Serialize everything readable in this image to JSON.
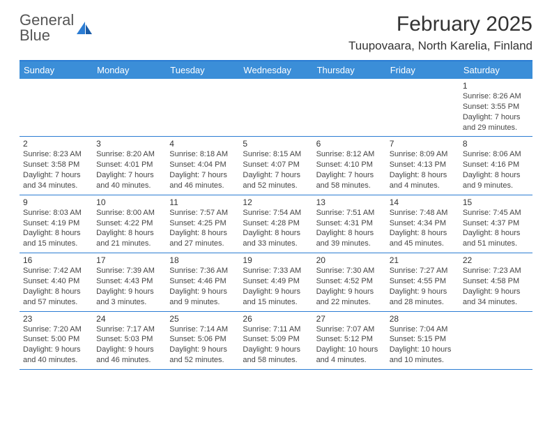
{
  "logo": {
    "text1": "General",
    "text2": "Blue"
  },
  "title": "February 2025",
  "location": "Tuupovaara, North Karelia, Finland",
  "colors": {
    "accent": "#3b8ed8",
    "border": "#2b7cd3",
    "logo_blue": "#2b7cd3",
    "text": "#333333",
    "bg": "#ffffff"
  },
  "day_headers": [
    "Sunday",
    "Monday",
    "Tuesday",
    "Wednesday",
    "Thursday",
    "Friday",
    "Saturday"
  ],
  "weeks": [
    [
      null,
      null,
      null,
      null,
      null,
      null,
      {
        "n": "1",
        "sr": "Sunrise: 8:26 AM",
        "ss": "Sunset: 3:55 PM",
        "d1": "Daylight: 7 hours",
        "d2": "and 29 minutes."
      }
    ],
    [
      {
        "n": "2",
        "sr": "Sunrise: 8:23 AM",
        "ss": "Sunset: 3:58 PM",
        "d1": "Daylight: 7 hours",
        "d2": "and 34 minutes."
      },
      {
        "n": "3",
        "sr": "Sunrise: 8:20 AM",
        "ss": "Sunset: 4:01 PM",
        "d1": "Daylight: 7 hours",
        "d2": "and 40 minutes."
      },
      {
        "n": "4",
        "sr": "Sunrise: 8:18 AM",
        "ss": "Sunset: 4:04 PM",
        "d1": "Daylight: 7 hours",
        "d2": "and 46 minutes."
      },
      {
        "n": "5",
        "sr": "Sunrise: 8:15 AM",
        "ss": "Sunset: 4:07 PM",
        "d1": "Daylight: 7 hours",
        "d2": "and 52 minutes."
      },
      {
        "n": "6",
        "sr": "Sunrise: 8:12 AM",
        "ss": "Sunset: 4:10 PM",
        "d1": "Daylight: 7 hours",
        "d2": "and 58 minutes."
      },
      {
        "n": "7",
        "sr": "Sunrise: 8:09 AM",
        "ss": "Sunset: 4:13 PM",
        "d1": "Daylight: 8 hours",
        "d2": "and 4 minutes."
      },
      {
        "n": "8",
        "sr": "Sunrise: 8:06 AM",
        "ss": "Sunset: 4:16 PM",
        "d1": "Daylight: 8 hours",
        "d2": "and 9 minutes."
      }
    ],
    [
      {
        "n": "9",
        "sr": "Sunrise: 8:03 AM",
        "ss": "Sunset: 4:19 PM",
        "d1": "Daylight: 8 hours",
        "d2": "and 15 minutes."
      },
      {
        "n": "10",
        "sr": "Sunrise: 8:00 AM",
        "ss": "Sunset: 4:22 PM",
        "d1": "Daylight: 8 hours",
        "d2": "and 21 minutes."
      },
      {
        "n": "11",
        "sr": "Sunrise: 7:57 AM",
        "ss": "Sunset: 4:25 PM",
        "d1": "Daylight: 8 hours",
        "d2": "and 27 minutes."
      },
      {
        "n": "12",
        "sr": "Sunrise: 7:54 AM",
        "ss": "Sunset: 4:28 PM",
        "d1": "Daylight: 8 hours",
        "d2": "and 33 minutes."
      },
      {
        "n": "13",
        "sr": "Sunrise: 7:51 AM",
        "ss": "Sunset: 4:31 PM",
        "d1": "Daylight: 8 hours",
        "d2": "and 39 minutes."
      },
      {
        "n": "14",
        "sr": "Sunrise: 7:48 AM",
        "ss": "Sunset: 4:34 PM",
        "d1": "Daylight: 8 hours",
        "d2": "and 45 minutes."
      },
      {
        "n": "15",
        "sr": "Sunrise: 7:45 AM",
        "ss": "Sunset: 4:37 PM",
        "d1": "Daylight: 8 hours",
        "d2": "and 51 minutes."
      }
    ],
    [
      {
        "n": "16",
        "sr": "Sunrise: 7:42 AM",
        "ss": "Sunset: 4:40 PM",
        "d1": "Daylight: 8 hours",
        "d2": "and 57 minutes."
      },
      {
        "n": "17",
        "sr": "Sunrise: 7:39 AM",
        "ss": "Sunset: 4:43 PM",
        "d1": "Daylight: 9 hours",
        "d2": "and 3 minutes."
      },
      {
        "n": "18",
        "sr": "Sunrise: 7:36 AM",
        "ss": "Sunset: 4:46 PM",
        "d1": "Daylight: 9 hours",
        "d2": "and 9 minutes."
      },
      {
        "n": "19",
        "sr": "Sunrise: 7:33 AM",
        "ss": "Sunset: 4:49 PM",
        "d1": "Daylight: 9 hours",
        "d2": "and 15 minutes."
      },
      {
        "n": "20",
        "sr": "Sunrise: 7:30 AM",
        "ss": "Sunset: 4:52 PM",
        "d1": "Daylight: 9 hours",
        "d2": "and 22 minutes."
      },
      {
        "n": "21",
        "sr": "Sunrise: 7:27 AM",
        "ss": "Sunset: 4:55 PM",
        "d1": "Daylight: 9 hours",
        "d2": "and 28 minutes."
      },
      {
        "n": "22",
        "sr": "Sunrise: 7:23 AM",
        "ss": "Sunset: 4:58 PM",
        "d1": "Daylight: 9 hours",
        "d2": "and 34 minutes."
      }
    ],
    [
      {
        "n": "23",
        "sr": "Sunrise: 7:20 AM",
        "ss": "Sunset: 5:00 PM",
        "d1": "Daylight: 9 hours",
        "d2": "and 40 minutes."
      },
      {
        "n": "24",
        "sr": "Sunrise: 7:17 AM",
        "ss": "Sunset: 5:03 PM",
        "d1": "Daylight: 9 hours",
        "d2": "and 46 minutes."
      },
      {
        "n": "25",
        "sr": "Sunrise: 7:14 AM",
        "ss": "Sunset: 5:06 PM",
        "d1": "Daylight: 9 hours",
        "d2": "and 52 minutes."
      },
      {
        "n": "26",
        "sr": "Sunrise: 7:11 AM",
        "ss": "Sunset: 5:09 PM",
        "d1": "Daylight: 9 hours",
        "d2": "and 58 minutes."
      },
      {
        "n": "27",
        "sr": "Sunrise: 7:07 AM",
        "ss": "Sunset: 5:12 PM",
        "d1": "Daylight: 10 hours",
        "d2": "and 4 minutes."
      },
      {
        "n": "28",
        "sr": "Sunrise: 7:04 AM",
        "ss": "Sunset: 5:15 PM",
        "d1": "Daylight: 10 hours",
        "d2": "and 10 minutes."
      },
      null
    ]
  ]
}
